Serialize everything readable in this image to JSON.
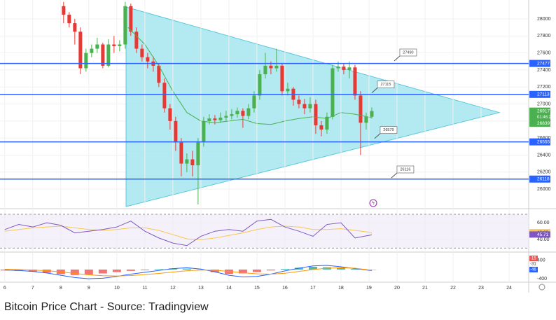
{
  "chart_data": {
    "type": "candlestick",
    "x": [
      8.1,
      8.3,
      8.5,
      8.7,
      8.9,
      9.1,
      9.3,
      9.5,
      9.7,
      9.9,
      10.1,
      10.3,
      10.5,
      10.7,
      10.9,
      11.1,
      11.3,
      11.5,
      11.7,
      11.9,
      12.1,
      12.3,
      12.5,
      12.7,
      12.9,
      13.1,
      13.3,
      13.5,
      13.7,
      13.9,
      14.1,
      14.3,
      14.5,
      14.7,
      14.9,
      15.1,
      15.3,
      15.5,
      15.7,
      15.9,
      16.1,
      16.3,
      16.5,
      16.7,
      16.9,
      17.1,
      17.3,
      17.5,
      17.7,
      17.9,
      18.1,
      18.3,
      18.5,
      18.7,
      18.9,
      19.1
    ],
    "open": [
      28150,
      28050,
      27950,
      27850,
      27420,
      27600,
      27650,
      27700,
      27450,
      27700,
      27680,
      27700,
      28150,
      27850,
      27650,
      27550,
      27500,
      27450,
      27250,
      26950,
      26800,
      26550,
      26300,
      26350,
      26280,
      26550,
      26800,
      26830,
      26810,
      26840,
      26860,
      26880,
      26920,
      26860,
      26950,
      27100,
      27350,
      27450,
      27420,
      27450,
      27150,
      27180,
      27050,
      27000,
      26950,
      27000,
      26750,
      26700,
      26850,
      27420,
      27440,
      27400,
      27430,
      27100,
      26780,
      26850
    ],
    "high": [
      28200,
      28080,
      28000,
      27900,
      27650,
      27700,
      27780,
      27720,
      27760,
      27800,
      27750,
      28200,
      28180,
      27900,
      27700,
      27600,
      27560,
      27480,
      27300,
      27000,
      26850,
      26600,
      26420,
      26450,
      26600,
      26850,
      26880,
      26870,
      26900,
      26920,
      26940,
      26960,
      26950,
      27000,
      27150,
      27400,
      27600,
      27500,
      27650,
      27480,
      27250,
      27200,
      27100,
      27060,
      27080,
      27050,
      26800,
      26900,
      27460,
      27500,
      27480,
      27500,
      27460,
      27150,
      26900,
      26960
    ],
    "low": [
      27950,
      27900,
      27700,
      27350,
      27380,
      27550,
      27600,
      27420,
      27430,
      27600,
      27620,
      27650,
      27800,
      27600,
      27500,
      27420,
      27380,
      27200,
      26900,
      26700,
      26450,
      26150,
      26200,
      26150,
      25820,
      26500,
      26760,
      26760,
      26780,
      26800,
      26820,
      26840,
      26720,
      26820,
      26900,
      27050,
      27300,
      27350,
      27380,
      27100,
      27100,
      26980,
      26950,
      26880,
      26900,
      26650,
      26620,
      26650,
      26820,
      27380,
      27350,
      27300,
      27050,
      26400,
      26700,
      26830
    ],
    "close": [
      28050,
      27950,
      27850,
      27420,
      27600,
      27650,
      27700,
      27450,
      27700,
      27680,
      27700,
      28150,
      27850,
      27650,
      27550,
      27500,
      27450,
      27250,
      26950,
      26800,
      26550,
      26300,
      26350,
      26280,
      26550,
      26800,
      26830,
      26810,
      26840,
      26860,
      26880,
      26920,
      26860,
      26950,
      27100,
      27350,
      27450,
      27420,
      27450,
      27150,
      27180,
      27050,
      27000,
      26950,
      27000,
      26750,
      26700,
      26850,
      27420,
      27440,
      27400,
      27430,
      27100,
      26780,
      26850,
      26917
    ],
    "up_color": "#4caf50",
    "down_color": "#e53935",
    "xlim": [
      5.83,
      24.7
    ],
    "xticks": [
      6,
      7,
      8,
      9,
      10,
      11,
      12,
      13,
      14,
      15,
      16,
      17,
      18,
      19,
      20,
      21,
      22,
      23,
      24
    ],
    "ylim": [
      25795,
      28140
    ],
    "yticks": [
      26000,
      26200,
      26400,
      26600,
      26800,
      27000,
      27200,
      27400,
      27600,
      27800,
      28000
    ],
    "grid": true,
    "triangle": {
      "x": [
        10.33,
        23.65,
        10.33
      ],
      "y": [
        28140,
        26900,
        25795
      ],
      "color": "#a6e6f0"
    },
    "levels": [
      27477,
      27113,
      26555,
      26118
    ],
    "level_color": "#2962ff",
    "callouts": [
      {
        "x": 20.4,
        "value": 27490
      },
      {
        "x": 19.6,
        "value": 27115
      },
      {
        "x": 19.7,
        "value": 26579
      },
      {
        "x": 20.3,
        "value": 26116
      }
    ],
    "last_price": 26917,
    "countdown": "01:46:26",
    "ma": {
      "color": "#4caf50",
      "x": [
        10.4,
        11,
        11.5,
        12,
        12.5,
        13,
        13.5,
        14,
        14.5,
        15,
        15.5,
        16,
        16.5,
        17,
        17.5,
        18,
        18.5,
        19.1
      ],
      "values": [
        27900,
        27700,
        27450,
        27150,
        26900,
        26800,
        26780,
        26800,
        26820,
        26770,
        26760,
        26800,
        26830,
        26850,
        26830,
        26900,
        26880,
        26839
      ]
    },
    "rsi": {
      "ylim": [
        27,
        75
      ],
      "yticks": [
        {
          "value": 60,
          "label": "60.00"
        },
        {
          "value": 40,
          "label": "40.00"
        }
      ],
      "band": [
        30,
        70
      ],
      "x": [
        6,
        6.5,
        7,
        7.5,
        8,
        8.5,
        9,
        9.5,
        10,
        10.5,
        11,
        11.5,
        12,
        12.5,
        13,
        13.5,
        14,
        14.5,
        15,
        15.5,
        16,
        16.5,
        17,
        17.5,
        18,
        18.5,
        19.1
      ],
      "values": [
        52,
        58,
        55,
        60,
        57,
        48,
        50,
        52,
        55,
        62,
        50,
        42,
        36,
        33,
        44,
        50,
        52,
        50,
        62,
        64,
        55,
        50,
        44,
        58,
        60,
        42,
        45.71
      ],
      "signal": [
        50,
        52,
        54,
        55,
        56,
        54,
        52,
        51,
        52,
        54,
        54,
        51,
        46,
        41,
        40,
        42,
        45,
        48,
        52,
        55,
        56,
        55,
        52,
        52,
        53,
        51,
        48.38
      ],
      "color": "#7e57c2",
      "signal_color": "#f9c74f"
    },
    "macd": {
      "ylim": [
        -520,
        700
      ],
      "yticks": [
        400,
        -400
      ],
      "x": [
        6,
        6.5,
        7,
        7.5,
        8,
        8.5,
        9,
        9.5,
        10,
        10.5,
        11,
        11.5,
        12,
        12.5,
        13,
        13.5,
        14,
        14.5,
        15,
        15.5,
        16,
        16.5,
        17,
        17.5,
        18,
        18.5,
        19.1
      ],
      "hist": [
        -40,
        -60,
        -90,
        -140,
        -200,
        -240,
        -220,
        -170,
        -110,
        -60,
        -30,
        20,
        50,
        40,
        -30,
        -110,
        -190,
        -170,
        -110,
        -40,
        30,
        80,
        120,
        100,
        60,
        30,
        -15
      ],
      "macd": [
        -20,
        -40,
        -80,
        -150,
        -250,
        -350,
        -400,
        -380,
        -300,
        -200,
        -120,
        -40,
        40,
        80,
        20,
        -100,
        -250,
        -320,
        -300,
        -200,
        -60,
        60,
        160,
        180,
        120,
        40,
        -46
      ],
      "signal": [
        10,
        0,
        -20,
        -50,
        -100,
        -170,
        -230,
        -270,
        -280,
        -260,
        -220,
        -170,
        -110,
        -50,
        -20,
        -30,
        -80,
        -140,
        -190,
        -200,
        -160,
        -80,
        0,
        60,
        80,
        60,
        -31
      ],
      "pos_color": "#26a69a",
      "neg_color": "#ef5350",
      "macd_color": "#2962ff",
      "signal_color": "#ff9800"
    }
  },
  "caption": "Bitcoin Price Chart - Source: Tradingview"
}
